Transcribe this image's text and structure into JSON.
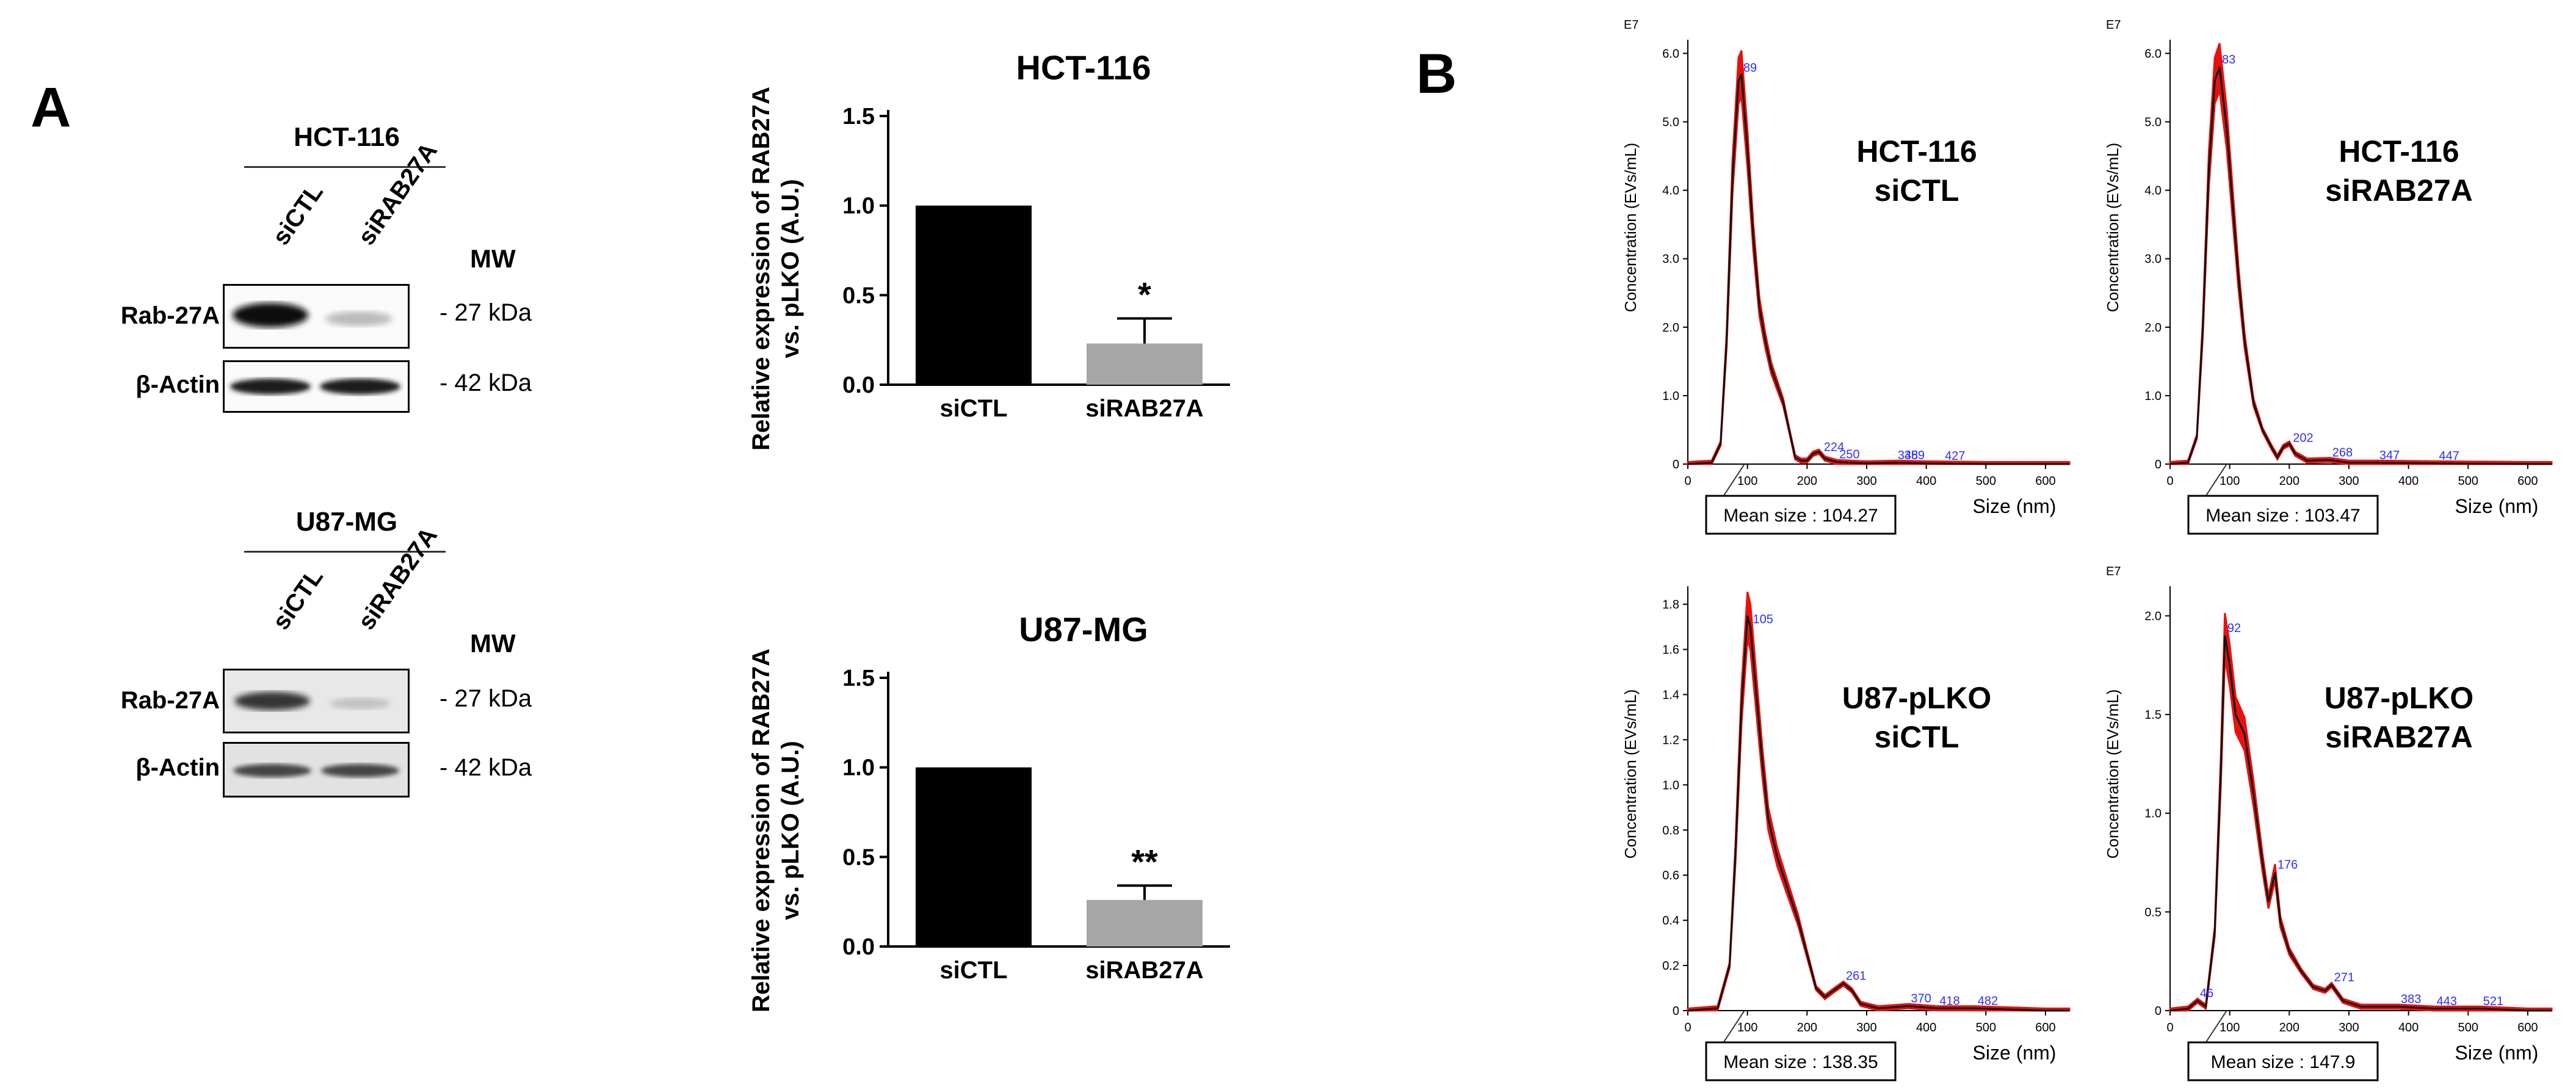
{
  "panel_a_label": "A",
  "panel_b_label": "B",
  "blots": [
    {
      "cell_line": "HCT-116",
      "lanes": [
        "siCTL",
        "siRAB27A"
      ],
      "mw_header": "MW",
      "rows": [
        {
          "protein": "Rab-27A",
          "mw": "- 27 kDa"
        },
        {
          "protein": "β-Actin",
          "mw": "- 42 kDa"
        }
      ]
    },
    {
      "cell_line": "U87-MG",
      "lanes": [
        "siCTL",
        "siRAB27A"
      ],
      "mw_header": "MW",
      "rows": [
        {
          "protein": "Rab-27A",
          "mw": "- 27 kDa"
        },
        {
          "protein": "β-Actin",
          "mw": "- 42 kDa"
        }
      ]
    }
  ],
  "chart_data": [
    {
      "type": "bar",
      "title": "HCT-116",
      "categories": [
        "siCTL",
        "siRAB27A"
      ],
      "values": [
        1.0,
        0.23
      ],
      "errors": [
        0,
        0.14
      ],
      "significance": [
        "",
        "*"
      ],
      "colors": [
        "#000000",
        "#a6a6a6"
      ],
      "ylabel_line1": "Relative expression of RAB27A",
      "ylabel_line2": "vs. pLKO (A.U.)",
      "ylim": [
        0,
        1.5
      ],
      "yticks": [
        "0.0",
        "0.5",
        "1.0",
        "1.5"
      ]
    },
    {
      "type": "bar",
      "title": "U87-MG",
      "categories": [
        "siCTL",
        "siRAB27A"
      ],
      "values": [
        1.0,
        0.26
      ],
      "errors": [
        0,
        0.08
      ],
      "significance": [
        "",
        "**"
      ],
      "colors": [
        "#000000",
        "#a6a6a6"
      ],
      "ylabel_line1": "Relative expression of RAB27A",
      "ylabel_line2": "vs. pLKO (A.U.)",
      "ylim": [
        0,
        1.5
      ],
      "yticks": [
        "0.0",
        "0.5",
        "1.0",
        "1.5"
      ]
    },
    {
      "type": "line",
      "label_line1": "HCT-116",
      "label_line2": "siCTL",
      "exponent": "E7",
      "ylabel": "Concentration (EVs/mL)",
      "xlabel": "Size (nm)",
      "xlim": [
        0,
        640
      ],
      "ylim": [
        0,
        6.2
      ],
      "xticks": [
        "0",
        "100",
        "200",
        "300",
        "400",
        "500",
        "600"
      ],
      "yticks": [
        "0",
        "1.0",
        "2.0",
        "3.0",
        "4.0",
        "5.0",
        "6.0"
      ],
      "peak_labels": [
        "89",
        "224",
        "250",
        "348",
        "359",
        "427"
      ],
      "peak_x": [
        89,
        224,
        250,
        348,
        359,
        427
      ],
      "mean_size": "Mean size : 104.27",
      "x": [
        0,
        40,
        55,
        65,
        75,
        85,
        90,
        100,
        110,
        120,
        130,
        140,
        150,
        160,
        170,
        180,
        190,
        200,
        210,
        220,
        230,
        250,
        300,
        350,
        400,
        500,
        600,
        640
      ],
      "y": [
        0,
        0.02,
        0.3,
        1.8,
        4.2,
        5.6,
        5.7,
        4.6,
        3.3,
        2.3,
        1.8,
        1.4,
        1.15,
        0.9,
        0.5,
        0.1,
        0.05,
        0.05,
        0.15,
        0.18,
        0.08,
        0.03,
        0.01,
        0.02,
        0.01,
        0,
        0,
        0
      ]
    },
    {
      "type": "line",
      "label_line1": "HCT-116",
      "label_line2": "siRAB27A",
      "exponent": "E7",
      "ylabel": "Concentration (EVs/mL)",
      "xlabel": "Size (nm)",
      "xlim": [
        0,
        640
      ],
      "ylim": [
        0,
        6.2
      ],
      "xticks": [
        "0",
        "100",
        "200",
        "300",
        "400",
        "500",
        "600"
      ],
      "yticks": [
        "0",
        "1.0",
        "2.0",
        "3.0",
        "4.0",
        "5.0",
        "6.0"
      ],
      "peak_labels": [
        "83",
        "202",
        "268",
        "347",
        "447"
      ],
      "peak_x": [
        83,
        202,
        268,
        347,
        447
      ],
      "mean_size": "Mean size : 103.47",
      "x": [
        0,
        30,
        45,
        55,
        65,
        75,
        83,
        95,
        105,
        115,
        125,
        140,
        155,
        170,
        180,
        190,
        200,
        210,
        230,
        268,
        300,
        347,
        447,
        600,
        640
      ],
      "y": [
        0,
        0.02,
        0.4,
        2.0,
        4.3,
        5.6,
        5.8,
        4.9,
        3.8,
        2.7,
        1.8,
        0.9,
        0.5,
        0.25,
        0.1,
        0.25,
        0.3,
        0.15,
        0.05,
        0.06,
        0.02,
        0.02,
        0.01,
        0,
        0
      ]
    },
    {
      "type": "line",
      "label_line1": "U87-pLKO",
      "label_line2": "siCTL",
      "exponent": "",
      "ylabel": "Concentration (EVs/mL)",
      "xlabel": "Size (nm)",
      "xlim": [
        0,
        640
      ],
      "ylim": [
        0,
        1.88
      ],
      "xticks": [
        "0",
        "100",
        "200",
        "300",
        "400",
        "500",
        "600"
      ],
      "yticks": [
        "0",
        "0.2",
        "0.4",
        "0.6",
        "0.8",
        "1.0",
        "1.2",
        "1.4",
        "1.6",
        "1.8"
      ],
      "peak_labels": [
        "105",
        "261",
        "370",
        "418",
        "482"
      ],
      "peak_x": [
        105,
        261,
        370,
        418,
        482
      ],
      "mean_size": "Mean size : 138.35",
      "x": [
        0,
        50,
        70,
        80,
        90,
        100,
        105,
        115,
        125,
        135,
        150,
        170,
        185,
        200,
        215,
        230,
        245,
        261,
        275,
        290,
        320,
        370,
        418,
        482,
        600,
        640
      ],
      "y": [
        0,
        0.01,
        0.2,
        0.7,
        1.35,
        1.75,
        1.7,
        1.4,
        1.1,
        0.85,
        0.68,
        0.52,
        0.4,
        0.25,
        0.1,
        0.06,
        0.09,
        0.12,
        0.09,
        0.03,
        0.01,
        0.02,
        0.01,
        0.01,
        0,
        0
      ]
    },
    {
      "type": "line",
      "label_line1": "U87-pLKO",
      "label_line2": "siRAB27A",
      "exponent": "E7",
      "ylabel": "Concentration (EVs/mL)",
      "xlabel": "Size (nm)",
      "xlim": [
        0,
        640
      ],
      "ylim": [
        0,
        2.15
      ],
      "xticks": [
        "0",
        "100",
        "200",
        "300",
        "400",
        "500",
        "600"
      ],
      "yticks": [
        "0",
        "0.5",
        "1.0",
        "1.5",
        "2.0"
      ],
      "peak_labels": [
        "46",
        "92",
        "176",
        "271",
        "383",
        "443",
        "521"
      ],
      "peak_x": [
        46,
        92,
        176,
        271,
        383,
        443,
        521
      ],
      "mean_size": "Mean size : 147.9",
      "x": [
        0,
        30,
        46,
        60,
        75,
        85,
        92,
        100,
        110,
        125,
        140,
        155,
        165,
        176,
        185,
        200,
        220,
        240,
        260,
        271,
        290,
        320,
        383,
        443,
        521,
        600,
        640
      ],
      "y": [
        0,
        0.01,
        0.05,
        0.02,
        0.4,
        1.2,
        1.9,
        1.75,
        1.5,
        1.4,
        1.1,
        0.75,
        0.55,
        0.7,
        0.45,
        0.3,
        0.2,
        0.12,
        0.1,
        0.13,
        0.05,
        0.02,
        0.02,
        0.01,
        0.01,
        0,
        0
      ]
    }
  ]
}
